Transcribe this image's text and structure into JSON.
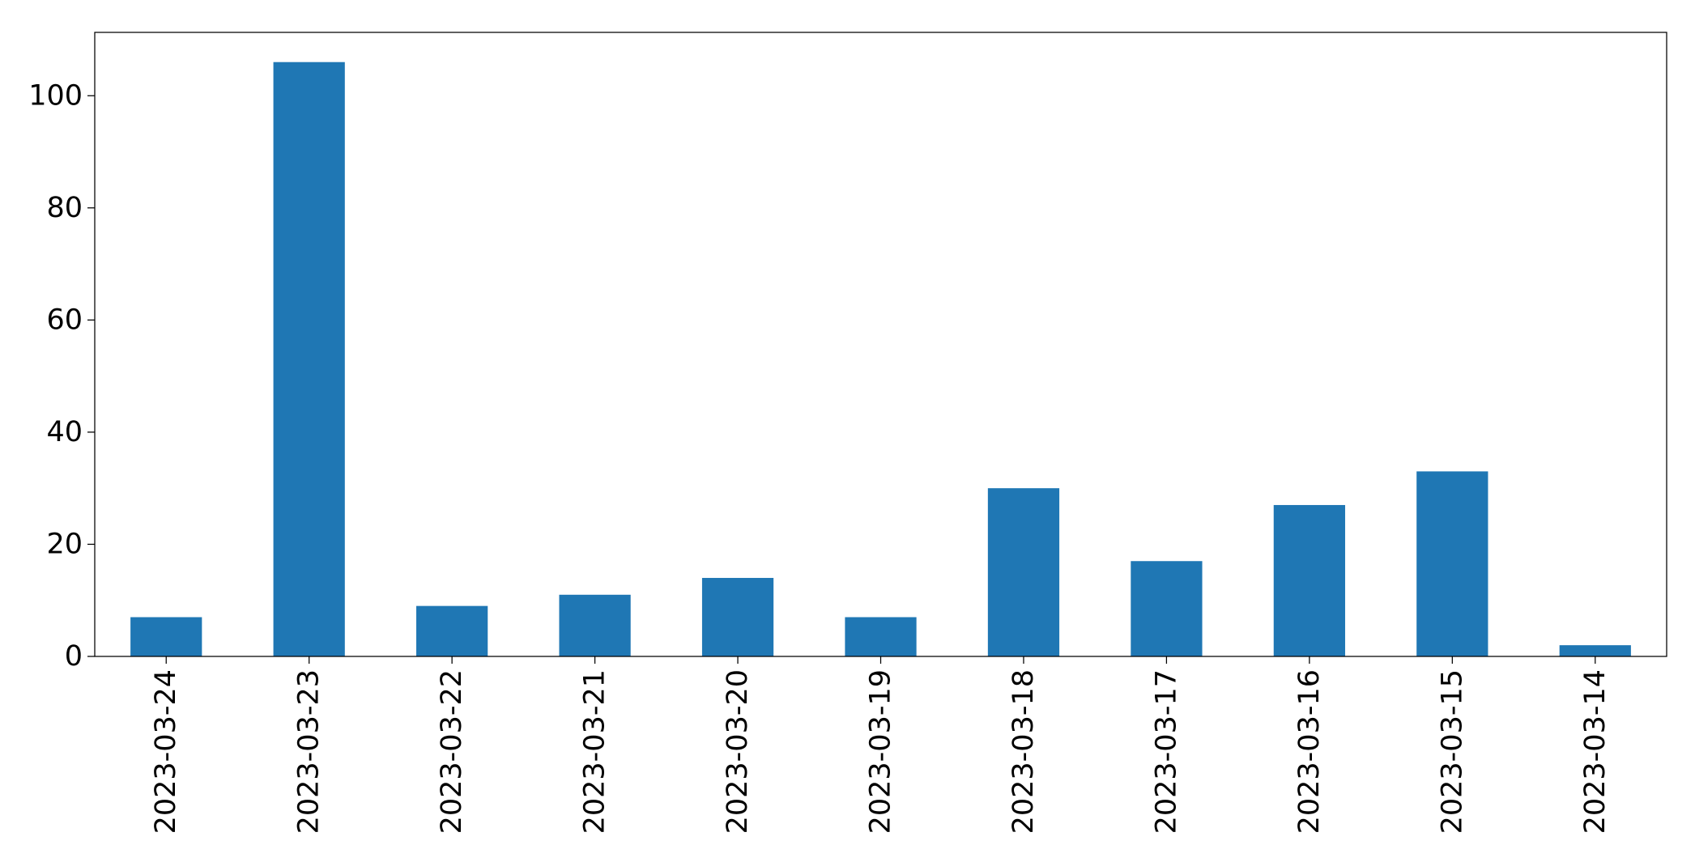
{
  "chart_data": {
    "type": "bar",
    "title": "",
    "xlabel": "",
    "ylabel": "",
    "categories": [
      "2023-03-24",
      "2023-03-23",
      "2023-03-22",
      "2023-03-21",
      "2023-03-20",
      "2023-03-19",
      "2023-03-18",
      "2023-03-17",
      "2023-03-16",
      "2023-03-15",
      "2023-03-14"
    ],
    "values": [
      7,
      106,
      9,
      11,
      14,
      7,
      30,
      17,
      27,
      33,
      2
    ],
    "ylim": [
      0,
      111.3
    ],
    "yticks": [
      0,
      20,
      40,
      60,
      80,
      100
    ],
    "ytick_labels": [
      "0",
      "20",
      "40",
      "60",
      "80",
      "100"
    ],
    "bar_color": "#1f77b4",
    "grid": false,
    "legend": "none"
  }
}
